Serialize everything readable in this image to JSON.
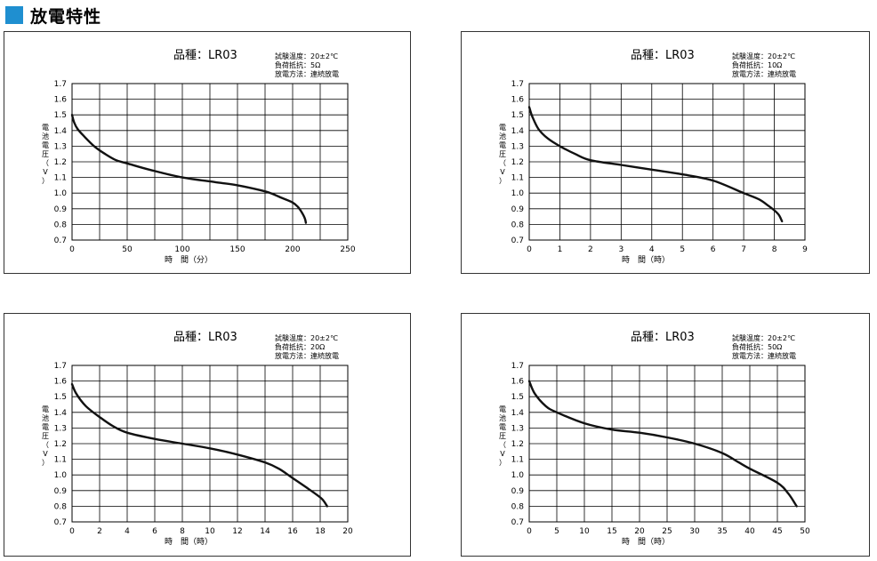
{
  "page_title": "放電特性",
  "colors": {
    "accent": "#1f8fd0",
    "curve": "#111111",
    "grid": "#000000"
  },
  "chart_data": [
    {
      "type": "line",
      "title": "品種：LR03",
      "conditions": [
        "試験温度：20±2℃",
        "負荷抵抗：5Ω",
        "放電方法：連続放電"
      ],
      "xlabel": "時　間（分）",
      "ylabel": "電池電圧（V）",
      "xlim": [
        0,
        250
      ],
      "ylim": [
        0.7,
        1.7
      ],
      "x_ticks": [
        "0",
        "50",
        "100",
        "150",
        "200",
        "250"
      ],
      "y_ticks": [
        "0.7",
        "0.8",
        "0.9",
        "1.0",
        "1.1",
        "1.2",
        "1.3",
        "1.4",
        "1.5",
        "1.6",
        "1.7"
      ],
      "x_grid_step": 25,
      "y_grid_step": 0.1,
      "grid": true,
      "series": [
        {
          "x": [
            0,
            2,
            5,
            10,
            20,
            30,
            40,
            50,
            70,
            100,
            130,
            150,
            170,
            180,
            190,
            200,
            205,
            208,
            211,
            212
          ],
          "y": [
            1.5,
            1.45,
            1.41,
            1.37,
            1.3,
            1.25,
            1.21,
            1.19,
            1.15,
            1.1,
            1.07,
            1.05,
            1.02,
            1.0,
            0.97,
            0.94,
            0.91,
            0.88,
            0.84,
            0.81
          ]
        }
      ]
    },
    {
      "type": "line",
      "title": "品種：LR03",
      "conditions": [
        "試験温度：20±2℃",
        "負荷抵抗：10Ω",
        "放電方法：連続放電"
      ],
      "xlabel": "時　間（時）",
      "ylabel": "電池電圧（V）",
      "xlim": [
        0,
        9
      ],
      "ylim": [
        0.7,
        1.7
      ],
      "x_ticks": [
        "0",
        "1",
        "2",
        "3",
        "4",
        "5",
        "6",
        "7",
        "8",
        "9"
      ],
      "y_ticks": [
        "0.7",
        "0.8",
        "0.9",
        "1.0",
        "1.1",
        "1.2",
        "1.3",
        "1.4",
        "1.5",
        "1.6",
        "1.7"
      ],
      "x_grid_step": 1,
      "y_grid_step": 0.1,
      "grid": true,
      "series": [
        {
          "x": [
            0,
            0.1,
            0.3,
            0.6,
            1.0,
            1.5,
            2.0,
            3.0,
            4.0,
            5.0,
            6.0,
            7.0,
            7.5,
            7.8,
            8.0,
            8.15,
            8.25
          ],
          "y": [
            1.55,
            1.49,
            1.41,
            1.35,
            1.3,
            1.25,
            1.21,
            1.18,
            1.15,
            1.12,
            1.08,
            1.0,
            0.96,
            0.92,
            0.89,
            0.86,
            0.82
          ]
        }
      ]
    },
    {
      "type": "line",
      "title": "品種：LR03",
      "conditions": [
        "試験温度：20±2℃",
        "負荷抵抗：20Ω",
        "放電方法：連続放電"
      ],
      "xlabel": "時　間（時）",
      "ylabel": "電池電圧（V）",
      "xlim": [
        0,
        20
      ],
      "ylim": [
        0.7,
        1.7
      ],
      "x_ticks": [
        "0",
        "2",
        "4",
        "6",
        "8",
        "10",
        "12",
        "14",
        "16",
        "18",
        "20"
      ],
      "y_ticks": [
        "0.7",
        "0.8",
        "0.9",
        "1.0",
        "1.1",
        "1.2",
        "1.3",
        "1.4",
        "1.5",
        "1.6",
        "1.7"
      ],
      "x_grid_step": 2,
      "y_grid_step": 0.1,
      "grid": true,
      "series": [
        {
          "x": [
            0,
            0.3,
            1,
            2,
            3,
            4,
            6,
            8,
            10,
            12,
            14,
            15,
            16,
            17,
            17.8,
            18.2,
            18.5
          ],
          "y": [
            1.58,
            1.52,
            1.44,
            1.37,
            1.31,
            1.27,
            1.23,
            1.2,
            1.17,
            1.13,
            1.08,
            1.04,
            0.98,
            0.92,
            0.87,
            0.84,
            0.8
          ]
        }
      ]
    },
    {
      "type": "line",
      "title": "品種：LR03",
      "conditions": [
        "試験温度：20±2℃",
        "負荷抵抗：50Ω",
        "放電方法：連続放電"
      ],
      "xlabel": "時　間（時）",
      "ylabel": "電池電圧（V）",
      "xlim": [
        0,
        50
      ],
      "ylim": [
        0.7,
        1.7
      ],
      "x_ticks": [
        "0",
        "5",
        "10",
        "15",
        "20",
        "25",
        "30",
        "35",
        "40",
        "45",
        "50"
      ],
      "y_ticks": [
        "0.7",
        "0.8",
        "0.9",
        "1.0",
        "1.1",
        "1.2",
        "1.3",
        "1.4",
        "1.5",
        "1.6",
        "1.7"
      ],
      "x_grid_step": 5,
      "y_grid_step": 0.1,
      "grid": true,
      "series": [
        {
          "x": [
            0,
            1,
            3,
            5,
            10,
            15,
            20,
            25,
            30,
            35,
            38,
            40,
            45,
            47,
            48.5
          ],
          "y": [
            1.6,
            1.52,
            1.44,
            1.4,
            1.33,
            1.29,
            1.27,
            1.24,
            1.2,
            1.14,
            1.08,
            1.04,
            0.95,
            0.88,
            0.8
          ]
        }
      ]
    }
  ]
}
